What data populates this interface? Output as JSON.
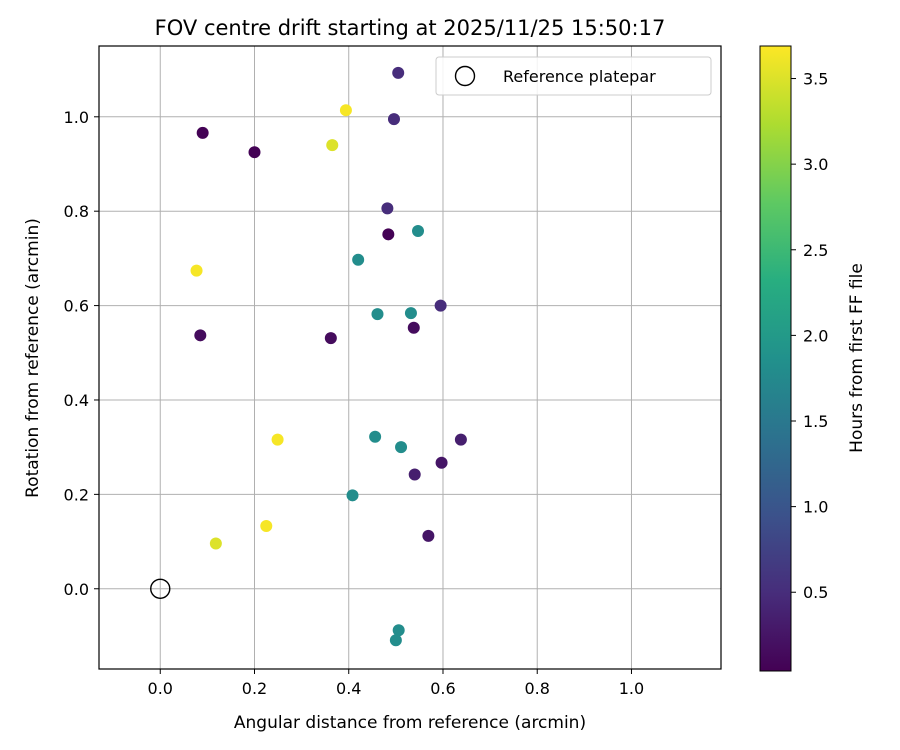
{
  "chart_data": {
    "type": "scatter",
    "title": "FOV centre drift starting at 2025/11/25 15:50:17",
    "xlabel": "Angular distance from reference (arcmin)",
    "ylabel": "Rotation from reference (arcmin)",
    "xlim": [
      -0.13,
      1.19
    ],
    "ylim": [
      -0.17,
      1.15
    ],
    "xticks": [
      0.0,
      0.2,
      0.4,
      0.6,
      0.8,
      1.0
    ],
    "yticks": [
      0.0,
      0.2,
      0.4,
      0.6,
      0.8,
      1.0
    ],
    "grid": true,
    "legend": {
      "placement": "top-right",
      "entries": [
        {
          "label": "Reference platepar",
          "marker": "open-circle"
        }
      ]
    },
    "reference_point": {
      "x": 0.0,
      "y": 0.0,
      "label": "Reference platepar"
    },
    "colorbar": {
      "label": "Hours from first FF file",
      "colormap": "viridis",
      "range": [
        0.04,
        3.69
      ],
      "ticks": [
        0.5,
        1.0,
        1.5,
        2.0,
        2.5,
        3.0,
        3.5
      ]
    },
    "series": [
      {
        "name": "FOV centre drift",
        "points": [
          {
            "x": 0.505,
            "y": 1.093,
            "c": 0.5
          },
          {
            "x": 0.496,
            "y": 0.995,
            "c": 0.5
          },
          {
            "x": 0.09,
            "y": 0.966,
            "c": 0.05
          },
          {
            "x": 0.2,
            "y": 0.925,
            "c": 0.05
          },
          {
            "x": 0.394,
            "y": 1.014,
            "c": 3.65
          },
          {
            "x": 0.365,
            "y": 0.94,
            "c": 3.5
          },
          {
            "x": 0.482,
            "y": 0.806,
            "c": 0.5
          },
          {
            "x": 0.484,
            "y": 0.751,
            "c": 0.05
          },
          {
            "x": 0.547,
            "y": 0.758,
            "c": 1.8
          },
          {
            "x": 0.42,
            "y": 0.697,
            "c": 1.8
          },
          {
            "x": 0.077,
            "y": 0.674,
            "c": 3.65
          },
          {
            "x": 0.461,
            "y": 0.582,
            "c": 1.8
          },
          {
            "x": 0.532,
            "y": 0.584,
            "c": 1.8
          },
          {
            "x": 0.595,
            "y": 0.6,
            "c": 0.5
          },
          {
            "x": 0.538,
            "y": 0.553,
            "c": 0.15
          },
          {
            "x": 0.085,
            "y": 0.537,
            "c": 0.15
          },
          {
            "x": 0.362,
            "y": 0.531,
            "c": 0.15
          },
          {
            "x": 0.249,
            "y": 0.316,
            "c": 3.65
          },
          {
            "x": 0.456,
            "y": 0.322,
            "c": 1.8
          },
          {
            "x": 0.511,
            "y": 0.3,
            "c": 1.8
          },
          {
            "x": 0.638,
            "y": 0.316,
            "c": 0.35
          },
          {
            "x": 0.54,
            "y": 0.242,
            "c": 0.35
          },
          {
            "x": 0.597,
            "y": 0.267,
            "c": 0.25
          },
          {
            "x": 0.408,
            "y": 0.198,
            "c": 1.8
          },
          {
            "x": 0.225,
            "y": 0.133,
            "c": 3.65
          },
          {
            "x": 0.118,
            "y": 0.096,
            "c": 3.5
          },
          {
            "x": 0.569,
            "y": 0.112,
            "c": 0.25
          },
          {
            "x": 0.506,
            "y": -0.088,
            "c": 1.8
          },
          {
            "x": 0.5,
            "y": -0.109,
            "c": 1.8
          }
        ]
      }
    ]
  }
}
